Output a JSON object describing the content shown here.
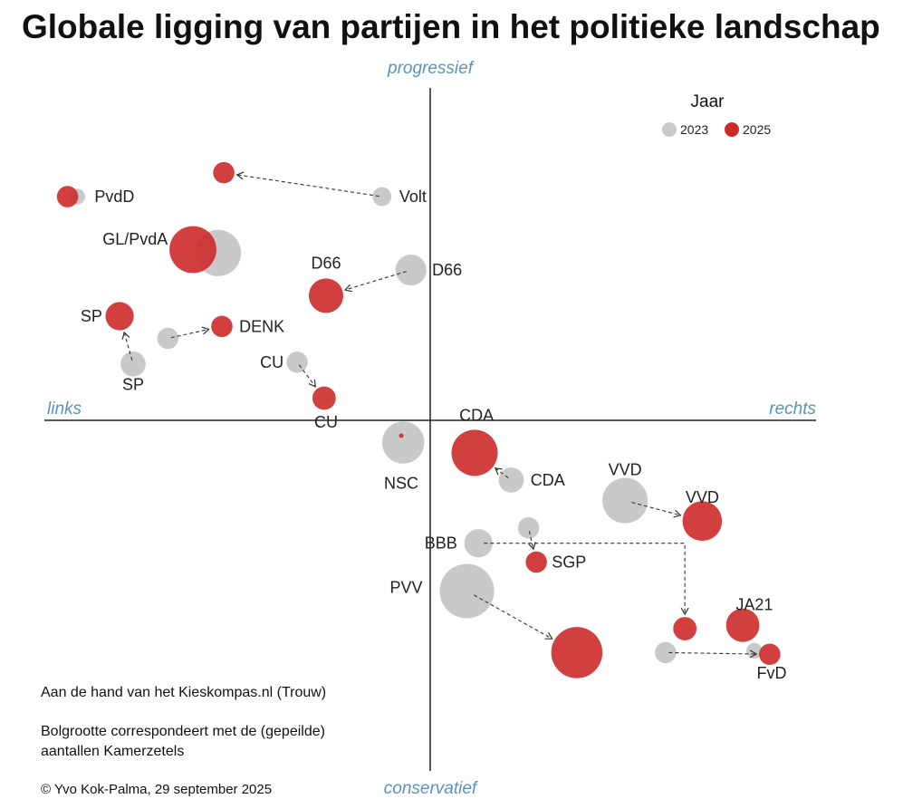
{
  "chart_data": {
    "type": "scatter",
    "title": "Globale ligging van partijen in het politieke landschap",
    "axes": {
      "top": "progressief",
      "bottom": "conservatief",
      "left": "links",
      "right": "rechts",
      "xlim": [
        -100,
        100
      ],
      "ylim": [
        -100,
        100
      ]
    },
    "legend": {
      "title": "Jaar",
      "position": "top-right",
      "entries": [
        {
          "label": "2023",
          "color": "#c9c9c9"
        },
        {
          "label": "2025",
          "color": "#cc2a2a"
        }
      ]
    },
    "series": [
      {
        "name": "2023",
        "color": "#c9c9c9",
        "points": [
          {
            "party": "Volt",
            "x": -12.5,
            "y": 65.5,
            "seats": 2
          },
          {
            "party": "PvdD",
            "x": -91.5,
            "y": 65.5,
            "seats": 1
          },
          {
            "party": "GL/PvdA",
            "x": -55.0,
            "y": 49.0,
            "seats": 25
          },
          {
            "party": "D66",
            "x": -5.0,
            "y": 44.0,
            "seats": 9
          },
          {
            "party": "DENK",
            "x": -68.0,
            "y": 24.0,
            "seats": 3
          },
          {
            "party": "SP",
            "x": -77.0,
            "y": 16.5,
            "seats": 5
          },
          {
            "party": "CU",
            "x": -34.5,
            "y": 17.0,
            "seats": 3
          },
          {
            "party": "NSC",
            "x": -7.0,
            "y": -6.5,
            "seats": 20
          },
          {
            "party": "CDA",
            "x": 21.0,
            "y": -17.5,
            "seats": 5
          },
          {
            "party": "VVD",
            "x": 50.5,
            "y": -23.5,
            "seats": 24
          },
          {
            "party": "SGP",
            "x": 25.5,
            "y": -31.5,
            "seats": 3
          },
          {
            "party": "BBB",
            "x": 12.5,
            "y": -36.0,
            "seats": 7
          },
          {
            "party": "PVV",
            "x": 9.5,
            "y": -50.0,
            "seats": 37
          },
          {
            "party": "FvD",
            "x": 61.0,
            "y": -68.0,
            "seats": 3
          },
          {
            "party": "JA21",
            "x": 84.0,
            "y": -67.5,
            "seats": 1
          }
        ]
      },
      {
        "name": "2025",
        "color": "#cc2a2a",
        "points": [
          {
            "party": "Volt",
            "x": -53.5,
            "y": 72.5,
            "seats": 3
          },
          {
            "party": "PvdD",
            "x": -94.0,
            "y": 65.5,
            "seats": 3
          },
          {
            "party": "GL/PvdA",
            "x": -61.5,
            "y": 50.0,
            "seats": 26
          },
          {
            "party": "D66",
            "x": -27.0,
            "y": 36.5,
            "seats": 12
          },
          {
            "party": "DENK",
            "x": -54.0,
            "y": 27.5,
            "seats": 3
          },
          {
            "party": "SP",
            "x": -80.5,
            "y": 30.5,
            "seats": 7
          },
          {
            "party": "CU",
            "x": -27.5,
            "y": 6.5,
            "seats": 4
          },
          {
            "party": "NSC",
            "x": -7.5,
            "y": -4.5,
            "seats": 0
          },
          {
            "party": "CDA",
            "x": 11.5,
            "y": -9.5,
            "seats": 25
          },
          {
            "party": "VVD",
            "x": 70.5,
            "y": -29.5,
            "seats": 17
          },
          {
            "party": "SGP",
            "x": 27.5,
            "y": -41.5,
            "seats": 3
          },
          {
            "party": "PVV",
            "x": 38.0,
            "y": -68.0,
            "seats": 32
          },
          {
            "party": "JA21",
            "x": 81.0,
            "y": -60.0,
            "seats": 11
          },
          {
            "party": "FvD",
            "x": 88.0,
            "y": -68.5,
            "seats": 3
          },
          {
            "party": "BBB",
            "x": 66.0,
            "y": -61.0,
            "seats": 4
          }
        ]
      }
    ],
    "arrows": [
      {
        "from": "Volt 2023",
        "to": "Volt 2025"
      },
      {
        "from": "D66 2023",
        "to": "D66 2025"
      },
      {
        "from": "SP 2023",
        "to": "SP 2025"
      },
      {
        "from": "DENK 2023",
        "to": "DENK 2025"
      },
      {
        "from": "CU 2023",
        "to": "CU 2025"
      },
      {
        "from": "CDA 2023",
        "to": "CDA 2025"
      },
      {
        "from": "VVD 2023",
        "to": "VVD 2025"
      },
      {
        "from": "SGP 2023",
        "to": "SGP 2025"
      },
      {
        "from": "BBB 2023",
        "to": "BBB 2025"
      },
      {
        "from": "PVV 2023",
        "to": "PVV 2025"
      },
      {
        "from": "FvD 2023",
        "to": "FvD 2025"
      }
    ],
    "labels": [
      {
        "text": "Volt",
        "x": -8.0,
        "y": 65.5,
        "anchor": "start"
      },
      {
        "text": "PvdD",
        "x": -87.0,
        "y": 65.5,
        "anchor": "start"
      },
      {
        "text": "GL/PvdA",
        "x": -68.0,
        "y": 53.0,
        "anchor": "end"
      },
      {
        "text": "D66",
        "x": -27.0,
        "y": 46.0,
        "anchor": "middle"
      },
      {
        "text": "D66",
        "x": 0.5,
        "y": 44.0,
        "anchor": "start"
      },
      {
        "text": "SP",
        "x": -85.0,
        "y": 30.5,
        "anchor": "end"
      },
      {
        "text": "DENK",
        "x": -49.5,
        "y": 27.5,
        "anchor": "start"
      },
      {
        "text": "CU",
        "x": -38.0,
        "y": 17.0,
        "anchor": "end"
      },
      {
        "text": "SP",
        "x": -77.0,
        "y": 10.5,
        "anchor": "middle"
      },
      {
        "text": "CU",
        "x": -27.0,
        "y": -0.5,
        "anchor": "middle"
      },
      {
        "text": "CDA",
        "x": 12.0,
        "y": 1.5,
        "anchor": "middle"
      },
      {
        "text": "NSC",
        "x": -7.5,
        "y": -18.5,
        "anchor": "middle"
      },
      {
        "text": "CDA",
        "x": 26.0,
        "y": -17.5,
        "anchor": "start"
      },
      {
        "text": "VVD",
        "x": 50.5,
        "y": -14.5,
        "anchor": "middle"
      },
      {
        "text": "VVD",
        "x": 70.5,
        "y": -22.5,
        "anchor": "middle"
      },
      {
        "text": "BBB",
        "x": 7.0,
        "y": -36.0,
        "anchor": "end"
      },
      {
        "text": "SGP",
        "x": 31.5,
        "y": -41.5,
        "anchor": "start"
      },
      {
        "text": "PVV",
        "x": -2.0,
        "y": -49.0,
        "anchor": "end"
      },
      {
        "text": "JA21",
        "x": 84.0,
        "y": -54.0,
        "anchor": "middle"
      },
      {
        "text": "FvD",
        "x": 88.5,
        "y": -74.0,
        "anchor": "middle"
      }
    ]
  },
  "notes": {
    "source": "Aan de hand van het Kieskompas.nl (Trouw)",
    "bubble_line1": "Bolgrootte correspondeert met de (gepeilde)",
    "bubble_line2": "aantallen Kamerzetels",
    "credit": "© Yvo Kok-Palma, 29 september 2025"
  }
}
